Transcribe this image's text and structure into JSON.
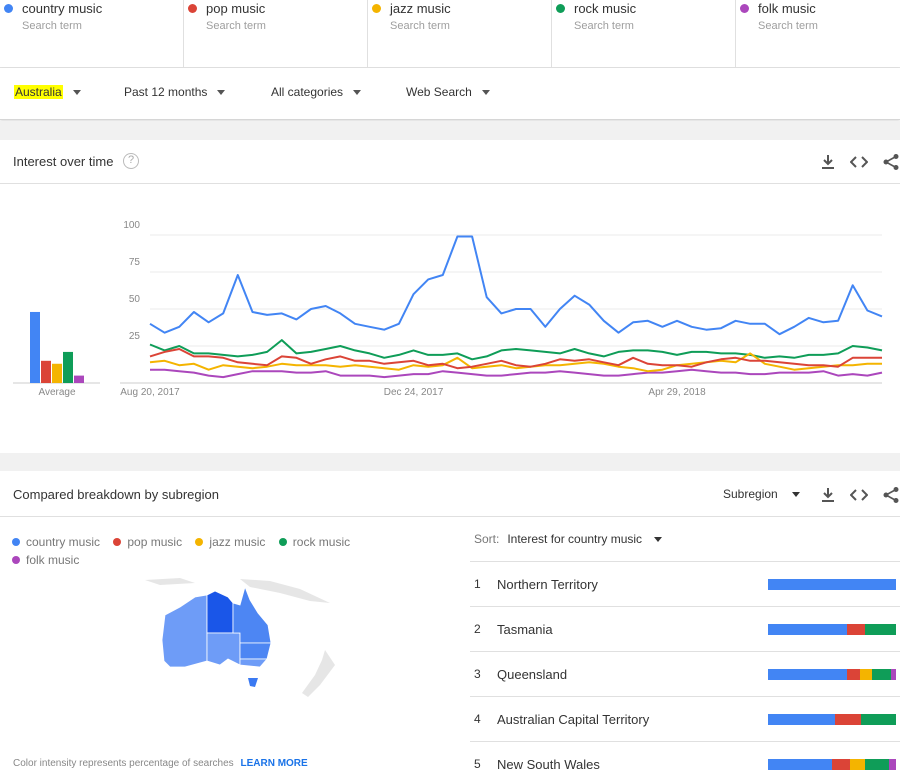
{
  "terms": [
    {
      "name": "country music",
      "sub": "Search term",
      "color": "#4285f4"
    },
    {
      "name": "pop music",
      "sub": "Search term",
      "color": "#db4437"
    },
    {
      "name": "jazz music",
      "sub": "Search term",
      "color": "#f4b400"
    },
    {
      "name": "rock music",
      "sub": "Search term",
      "color": "#0f9d58"
    },
    {
      "name": "folk music",
      "sub": "Search term",
      "color": "#ab47bc"
    }
  ],
  "filters": {
    "region": "Australia",
    "time": "Past 12 months",
    "category": "All categories",
    "search_type": "Web Search"
  },
  "interest_card": {
    "title": "Interest over time",
    "help": "?",
    "average_label": "Average"
  },
  "breakdown_card": {
    "title": "Compared breakdown by subregion",
    "resolution": "Subregion",
    "sort_label": "Sort:",
    "sort_value": "Interest for country music",
    "footnote": "Color intensity represents percentage of searches",
    "learn_more": "LEARN MORE"
  },
  "chart_data": [
    {
      "type": "line",
      "x_tick_labels": [
        "Aug 20, 2017",
        "Dec 24, 2017",
        "Apr 29, 2018"
      ],
      "ylim": [
        0,
        100
      ],
      "y_ticks": [
        25,
        50,
        75,
        100
      ],
      "grid": true,
      "series": [
        {
          "name": "country music",
          "color": "#4285f4",
          "values": [
            40,
            34,
            38,
            48,
            41,
            47,
            73,
            48,
            46,
            47,
            43,
            50,
            52,
            47,
            40,
            38,
            36,
            40,
            60,
            70,
            73,
            99,
            99,
            58,
            47,
            50,
            50,
            38,
            50,
            59,
            53,
            42,
            34,
            41,
            42,
            38,
            42,
            38,
            36,
            37,
            42,
            40,
            40,
            33,
            38,
            44,
            41,
            42,
            66,
            49,
            45
          ]
        },
        {
          "name": "pop music",
          "color": "#db4437",
          "values": [
            18,
            21,
            23,
            18,
            18,
            17,
            14,
            13,
            12,
            18,
            17,
            13,
            16,
            18,
            15,
            15,
            13,
            14,
            15,
            12,
            13,
            10,
            11,
            13,
            15,
            12,
            11,
            13,
            16,
            15,
            16,
            14,
            12,
            17,
            13,
            12,
            12,
            11,
            14,
            16,
            17,
            15,
            15,
            14,
            13,
            12,
            12,
            11,
            17,
            17,
            17
          ]
        },
        {
          "name": "jazz music",
          "color": "#f4b400",
          "values": [
            14,
            15,
            12,
            13,
            9,
            12,
            11,
            10,
            11,
            13,
            12,
            12,
            12,
            11,
            12,
            11,
            10,
            9,
            12,
            11,
            12,
            17,
            10,
            11,
            12,
            10,
            11,
            12,
            12,
            13,
            14,
            13,
            11,
            10,
            8,
            9,
            12,
            13,
            14,
            15,
            14,
            20,
            13,
            11,
            9,
            10,
            11,
            12,
            12,
            13,
            13
          ]
        },
        {
          "name": "rock music",
          "color": "#0f9d58",
          "values": [
            26,
            22,
            25,
            20,
            20,
            19,
            18,
            19,
            21,
            29,
            20,
            21,
            23,
            25,
            22,
            20,
            17,
            19,
            22,
            19,
            19,
            20,
            16,
            18,
            22,
            23,
            22,
            21,
            20,
            23,
            20,
            18,
            21,
            22,
            22,
            21,
            19,
            21,
            21,
            20,
            20,
            19,
            17,
            18,
            17,
            19,
            19,
            20,
            25,
            24,
            22
          ]
        },
        {
          "name": "folk music",
          "color": "#ab47bc",
          "values": [
            9,
            9,
            8,
            7,
            5,
            4,
            6,
            8,
            8,
            8,
            7,
            7,
            8,
            5,
            5,
            5,
            4,
            5,
            6,
            6,
            8,
            7,
            6,
            5,
            5,
            6,
            7,
            7,
            8,
            7,
            6,
            5,
            5,
            6,
            7,
            7,
            8,
            9,
            8,
            7,
            7,
            6,
            6,
            7,
            7,
            7,
            8,
            5,
            6,
            5,
            7
          ]
        }
      ]
    },
    {
      "type": "bar",
      "categories": [
        "country music",
        "pop music",
        "jazz music",
        "rock music",
        "folk music"
      ],
      "values": [
        48,
        15,
        13,
        21,
        5
      ],
      "colors": [
        "#4285f4",
        "#db4437",
        "#f4b400",
        "#0f9d58",
        "#ab47bc"
      ],
      "xlabel": "Average",
      "ylim": [
        0,
        100
      ]
    },
    {
      "type": "bar",
      "stacked": true,
      "categories": [
        "Northern Territory",
        "Tasmania",
        "Queensland",
        "Australian Capital Territory",
        "New South Wales"
      ],
      "ranks": [
        "1",
        "2",
        "3",
        "4",
        "5"
      ],
      "series": [
        {
          "name": "country music",
          "color": "#4285f4",
          "values": [
            100,
            62,
            60,
            52,
            49
          ]
        },
        {
          "name": "pop music",
          "color": "#db4437",
          "values": [
            0,
            14,
            10,
            21,
            14
          ]
        },
        {
          "name": "jazz music",
          "color": "#f4b400",
          "values": [
            0,
            0,
            9,
            0,
            11
          ]
        },
        {
          "name": "rock music",
          "color": "#0f9d58",
          "values": [
            0,
            24,
            14,
            27,
            19
          ]
        },
        {
          "name": "folk music",
          "color": "#ab47bc",
          "values": [
            0,
            0,
            4,
            0,
            5
          ]
        }
      ]
    }
  ]
}
